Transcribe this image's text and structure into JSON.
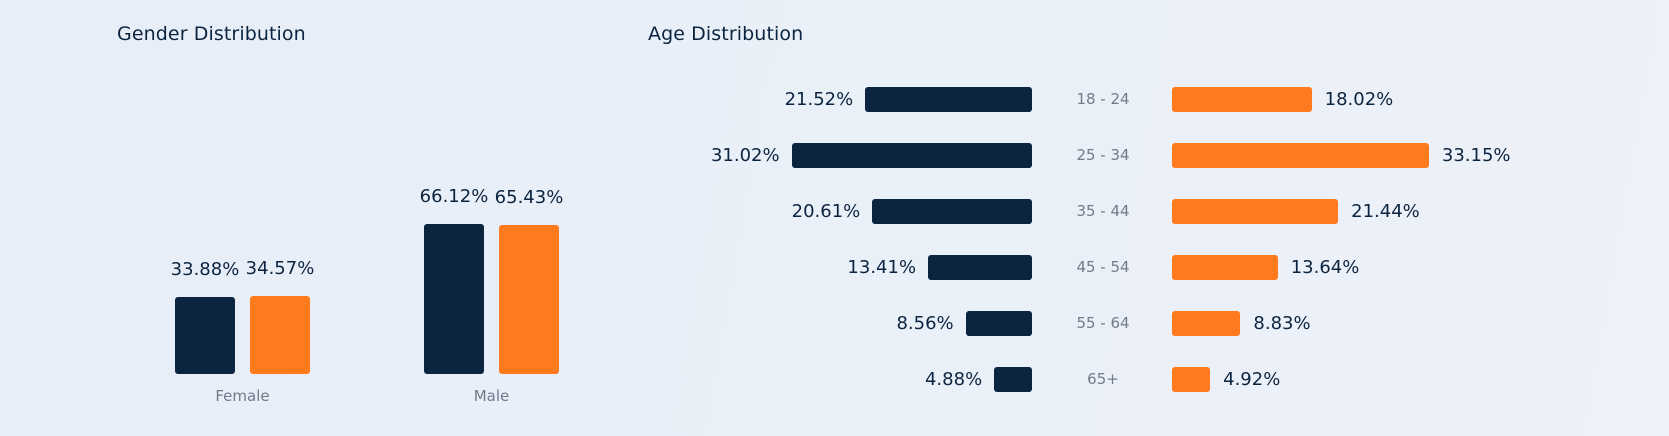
{
  "colors": {
    "series_male_navy": "#0b2440",
    "series_female_orange": "#ff7a1c",
    "category_text": "#6f7a8a"
  },
  "chart_data": [
    {
      "type": "bar",
      "title": "Gender Distribution",
      "categories": [
        "Female",
        "Male"
      ],
      "series": [
        {
          "values": [
            33.88,
            66.12
          ],
          "labels": [
            "33.88%",
            "66.12%"
          ],
          "color": "#0b2440"
        },
        {
          "values": [
            34.57,
            65.43
          ],
          "labels": [
            "34.57%",
            "65.43%"
          ],
          "color": "#ff7a1c"
        }
      ],
      "ylim": [
        0,
        100
      ],
      "grid": false
    },
    {
      "type": "bar",
      "orientation": "horizontal-diverging",
      "title": "Age Distribution",
      "categories": [
        "18 - 24",
        "25 - 34",
        "35 - 44",
        "45 - 54",
        "55 - 64",
        "65+"
      ],
      "series": [
        {
          "side": "left",
          "values": [
            21.52,
            31.02,
            20.61,
            13.41,
            8.56,
            4.88
          ],
          "labels": [
            "21.52%",
            "31.02%",
            "20.61%",
            "13.41%",
            "8.56%",
            "4.88%"
          ],
          "color": "#0b2440"
        },
        {
          "side": "right",
          "values": [
            18.02,
            33.15,
            21.44,
            13.64,
            8.83,
            4.92
          ],
          "labels": [
            "18.02%",
            "33.15%",
            "21.44%",
            "13.64%",
            "8.83%",
            "4.92%"
          ],
          "color": "#ff7a1c"
        }
      ],
      "grid": false
    }
  ]
}
